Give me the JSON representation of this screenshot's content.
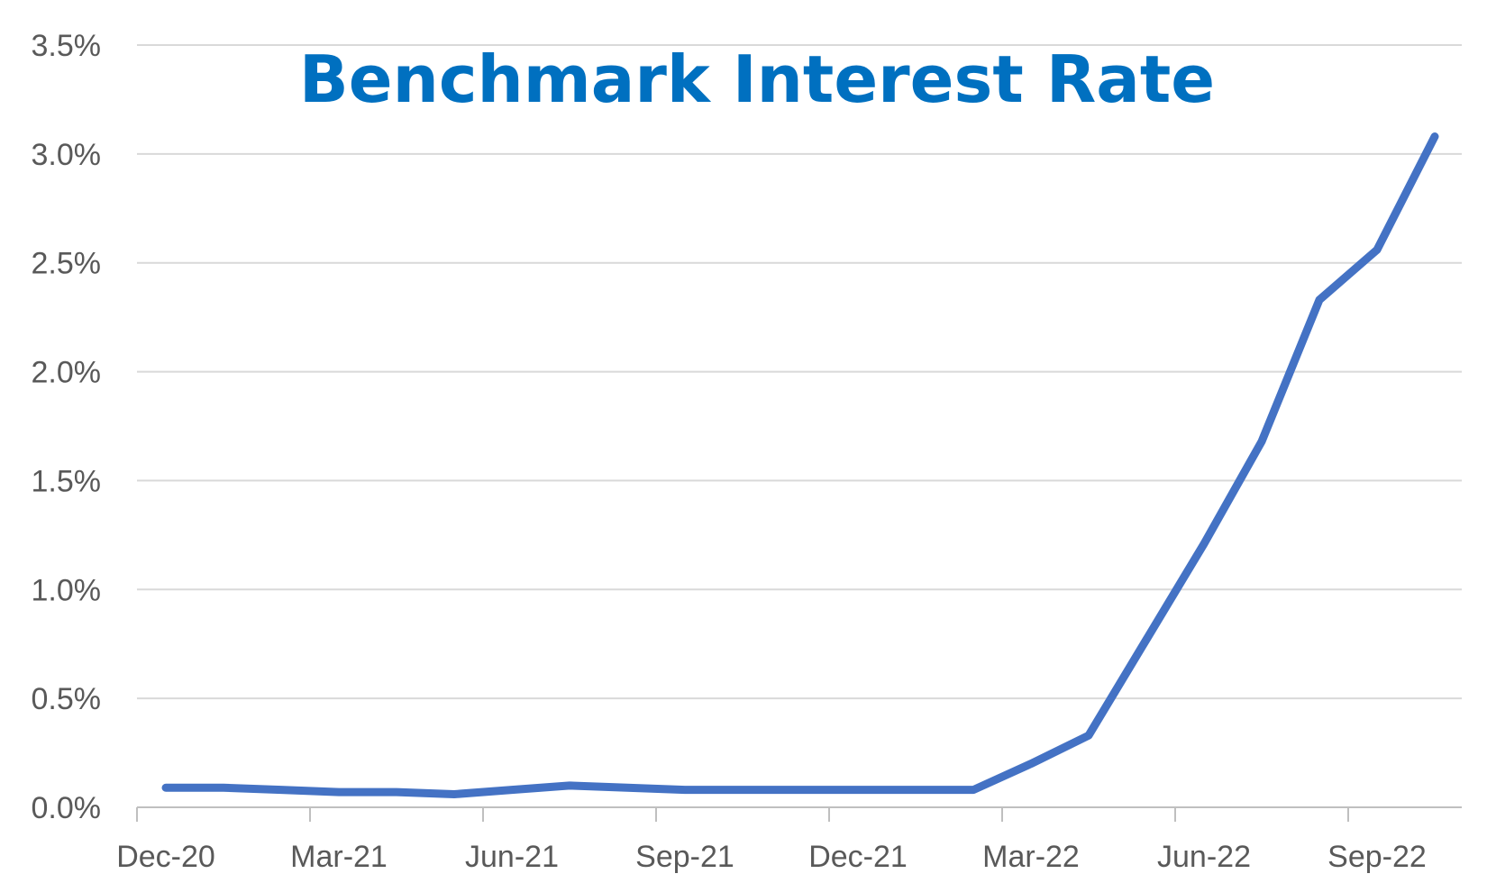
{
  "chart_data": {
    "type": "line",
    "title": "Benchmark Interest Rate",
    "xlabel": "",
    "ylabel": "",
    "ylim": [
      0,
      3.5
    ],
    "y_ticks": [
      "0.0%",
      "0.5%",
      "1.0%",
      "1.5%",
      "2.0%",
      "2.5%",
      "3.0%",
      "3.5%"
    ],
    "x_ticks": [
      "Dec-20",
      "Mar-21",
      "Jun-21",
      "Sep-21",
      "Dec-21",
      "Mar-22",
      "Jun-22",
      "Sep-22"
    ],
    "grid": true,
    "legend": "none",
    "series": [
      {
        "color": "#4472C4",
        "x": [
          "Dec-20",
          "Jan-21",
          "Feb-21",
          "Mar-21",
          "Apr-21",
          "May-21",
          "Jun-21",
          "Jul-21",
          "Aug-21",
          "Sep-21",
          "Oct-21",
          "Nov-21",
          "Dec-21",
          "Jan-22",
          "Feb-22",
          "Mar-22",
          "Apr-22",
          "May-22",
          "Jun-22",
          "Jul-22",
          "Aug-22",
          "Sep-22",
          "Oct-22"
        ],
        "values": [
          0.09,
          0.09,
          0.08,
          0.07,
          0.07,
          0.06,
          0.08,
          0.1,
          0.09,
          0.08,
          0.08,
          0.08,
          0.08,
          0.08,
          0.08,
          0.2,
          0.33,
          0.77,
          1.21,
          1.68,
          2.33,
          2.56,
          3.08
        ]
      }
    ],
    "colors": {
      "title": "#0070C0",
      "line": "#4472C4",
      "grid": "#D9D9D9",
      "axis": "#BFBFBF",
      "tick_text": "#595959"
    }
  }
}
